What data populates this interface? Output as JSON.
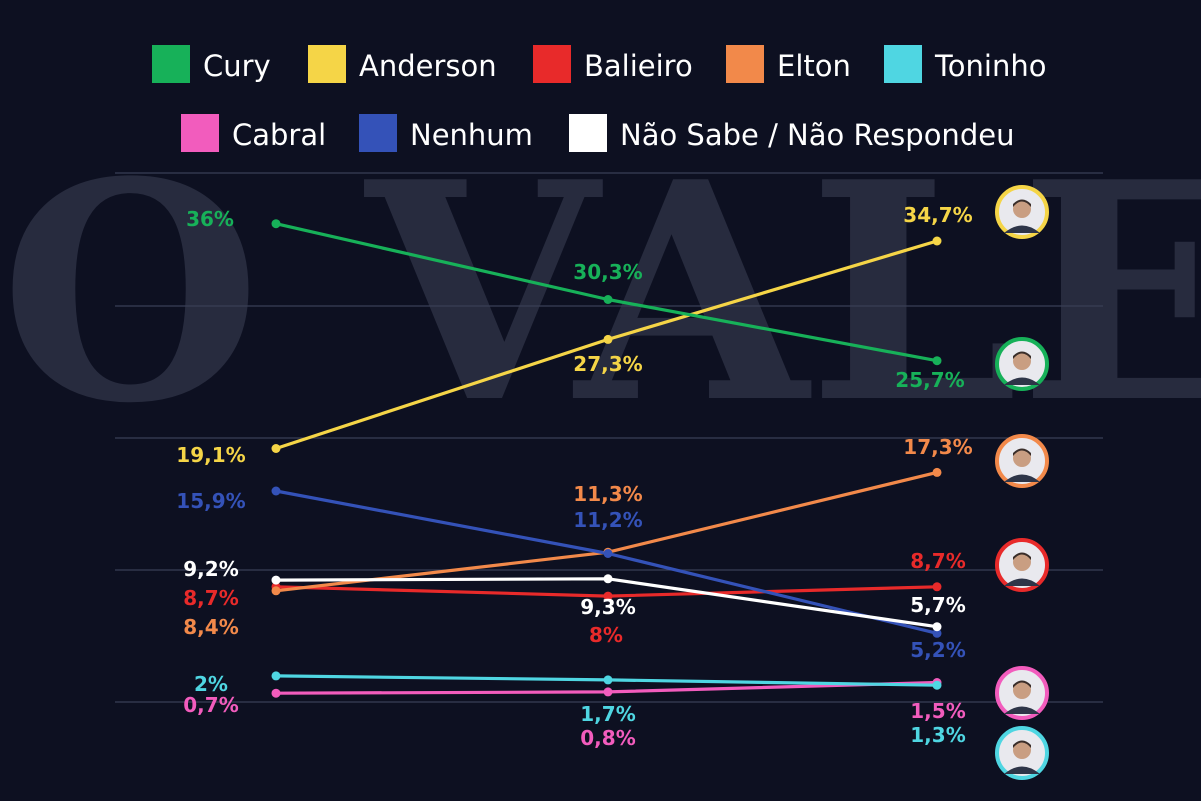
{
  "watermark": "O VALE",
  "chart_data": {
    "type": "line",
    "categories": [
      "",
      "",
      ""
    ],
    "ylim": [
      0,
      40
    ],
    "grid": true,
    "legend_position": "top",
    "series": [
      {
        "name": "Cury",
        "color": "#17b159",
        "values": [
          36,
          30.3,
          25.7
        ],
        "labels": [
          "36%",
          "30,3%",
          "25,7%"
        ]
      },
      {
        "name": "Anderson",
        "color": "#f5d547",
        "values": [
          19.1,
          27.3,
          34.7
        ],
        "labels": [
          "19,1%",
          "27,3%",
          "34,7%"
        ]
      },
      {
        "name": "Balieiro",
        "color": "#e82a2a",
        "values": [
          8.7,
          8,
          8.7
        ],
        "labels": [
          "8,7%",
          "8%",
          "8,7%"
        ]
      },
      {
        "name": "Elton",
        "color": "#f2894a",
        "values": [
          8.4,
          11.3,
          17.3
        ],
        "labels": [
          "8,4%",
          "11,3%",
          "17,3%"
        ]
      },
      {
        "name": "Toninho",
        "color": "#4fd6e2",
        "values": [
          2,
          1.7,
          1.3
        ],
        "labels": [
          "2%",
          "1,7%",
          "1,3%"
        ]
      },
      {
        "name": "Cabral",
        "color": "#f25cbd",
        "values": [
          0.7,
          0.8,
          1.5
        ],
        "labels": [
          "0,7%",
          "0,8%",
          "1,5%"
        ]
      },
      {
        "name": "Nenhum",
        "color": "#3452b8",
        "values": [
          15.9,
          11.2,
          5.2
        ],
        "labels": [
          "15,9%",
          "11,2%",
          "5,2%"
        ]
      },
      {
        "name": "Não Sabe / Não Respondeu",
        "color": "#ffffff",
        "values": [
          9.2,
          9.3,
          5.7
        ],
        "labels": [
          "9,2%",
          "9,3%",
          "5,7%"
        ]
      }
    ],
    "avatars": [
      {
        "name": "Anderson",
        "ring": "#f5d547"
      },
      {
        "name": "Cury",
        "ring": "#17b159"
      },
      {
        "name": "Elton",
        "ring": "#f2894a"
      },
      {
        "name": "Balieiro",
        "ring": "#e82a2a"
      },
      {
        "name": "Cabral",
        "ring": "#f25cbd"
      },
      {
        "name": "Toninho",
        "ring": "#4fd6e2"
      }
    ]
  }
}
